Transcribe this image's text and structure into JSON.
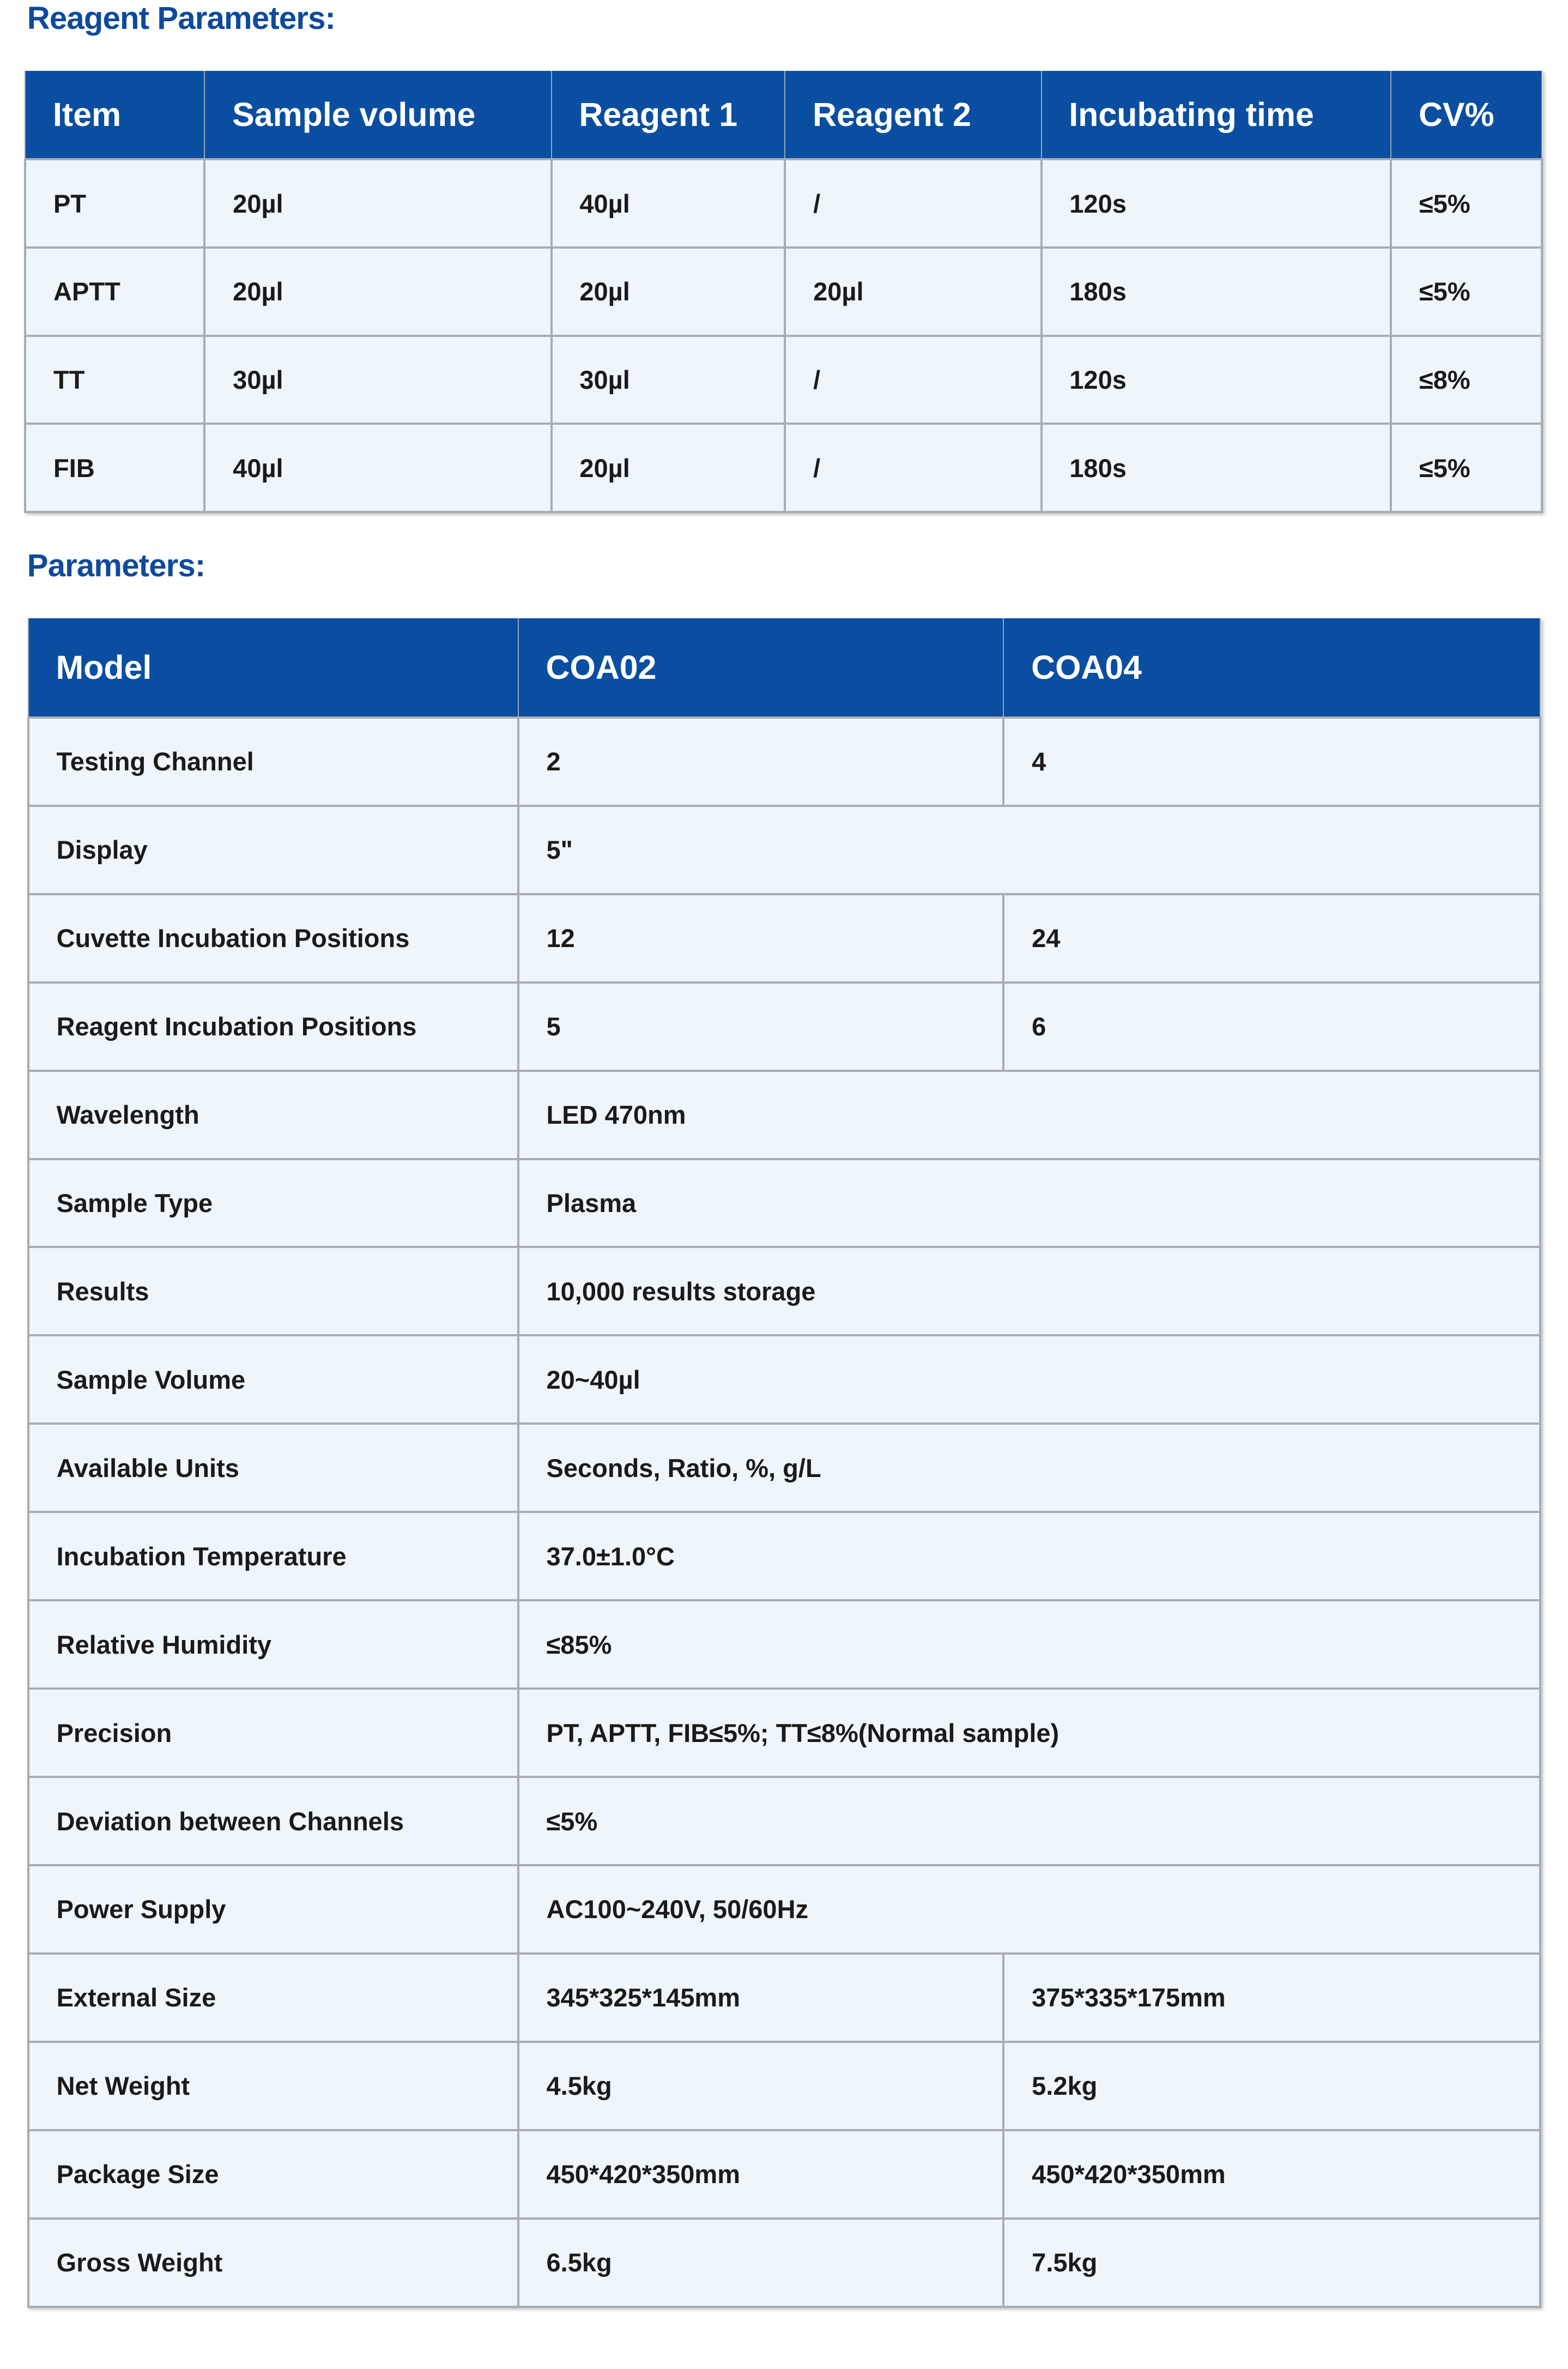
{
  "reagent_section": {
    "title": "Reagent Parameters:",
    "headers": [
      "Item",
      "Sample volume",
      "Reagent 1",
      "Reagent 2",
      "Incubating time",
      "CV%"
    ],
    "rows": [
      [
        "PT",
        "20µl",
        "40µl",
        "/",
        "120s",
        "≤5%"
      ],
      [
        "APTT",
        "20µl",
        "20µl",
        "20µl",
        "180s",
        "≤5%"
      ],
      [
        "TT",
        "30µl",
        "30µl",
        "/",
        "120s",
        "≤8%"
      ],
      [
        "FIB",
        "40µl",
        "20µl",
        "/",
        "180s",
        "≤5%"
      ]
    ]
  },
  "parameters_section": {
    "title": "Parameters:",
    "headers": [
      "Model",
      "COA02",
      "COA04"
    ],
    "rows": [
      [
        "Testing Channel",
        "2",
        "4"
      ],
      [
        "Display",
        "5\""
      ],
      [
        "Cuvette Incubation Positions",
        "12",
        "24"
      ],
      [
        "Reagent Incubation Positions",
        "5",
        "6"
      ],
      [
        "Wavelength",
        "LED 470nm"
      ],
      [
        "Sample Type",
        "Plasma"
      ],
      [
        "Results",
        "10,000 results storage"
      ],
      [
        "Sample Volume",
        "20~40µl"
      ],
      [
        "Available Units",
        "Seconds, Ratio, %, g/L"
      ],
      [
        "Incubation Temperature",
        "37.0±1.0°C"
      ],
      [
        "Relative Humidity",
        "≤85%"
      ],
      [
        "Precision",
        "PT, APTT, FIB≤5%; TT≤8%(Normal sample)"
      ],
      [
        "Deviation between Channels",
        "≤5%"
      ],
      [
        "Power Supply",
        "AC100~240V, 50/60Hz"
      ],
      [
        "External Size",
        "345*325*145mm",
        "375*335*175mm"
      ],
      [
        "Net Weight",
        "4.5kg",
        "5.2kg"
      ],
      [
        "Package Size",
        "450*420*350mm",
        "450*420*350mm"
      ],
      [
        "Gross Weight",
        "6.5kg",
        "7.5kg"
      ]
    ]
  },
  "colors": {
    "header_bg": "#0a4ea2",
    "title": "#0d4a9c",
    "cell_bg": "#eef5fb"
  }
}
